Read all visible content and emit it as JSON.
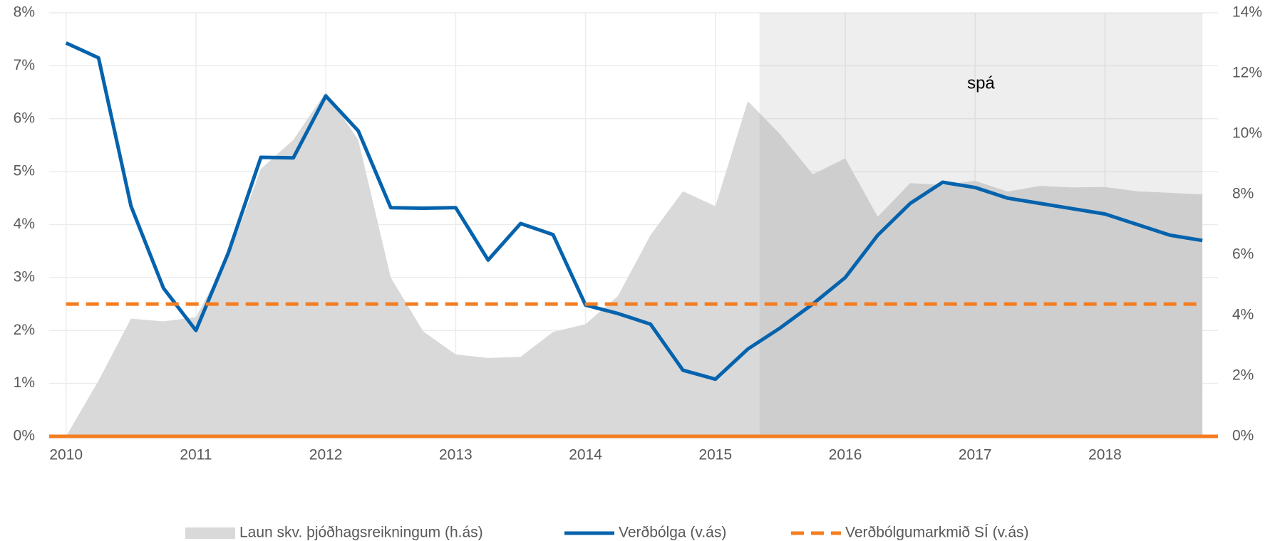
{
  "chart_data": {
    "type": "line",
    "x": [
      2010,
      2010.25,
      2010.5,
      2010.75,
      2011,
      2011.25,
      2011.5,
      2011.75,
      2012,
      2012.25,
      2012.5,
      2012.75,
      2013,
      2013.25,
      2013.5,
      2013.75,
      2014,
      2014.25,
      2014.5,
      2014.75,
      2015,
      2015.25,
      2015.5,
      2015.75,
      2016,
      2016.25,
      2016.5,
      2016.75,
      2017,
      2017.25,
      2017.5,
      2017.75,
      2018,
      2018.25,
      2018.5,
      2018.75
    ],
    "series": [
      {
        "name": "Laun skv. þjóðhagsreikningum (h.ás)",
        "kind": "area",
        "axis": "y2",
        "color": "#d9d9d9",
        "values": [
          0,
          1.84,
          3.89,
          3.8,
          3.94,
          5.95,
          8.84,
          9.8,
          11.38,
          9.8,
          5.25,
          3.47,
          2.71,
          2.59,
          2.63,
          3.45,
          3.71,
          4.64,
          6.65,
          8.1,
          7.61,
          11.08,
          9.98,
          8.66,
          9.19,
          7.26,
          8.37,
          8.31,
          8.45,
          8.09,
          8.28,
          8.23,
          8.24,
          8.1,
          8.05,
          8.0
        ]
      },
      {
        "name": "Verðbólga (v.ás)",
        "kind": "line",
        "color": "#0563ad",
        "values": [
          7.43,
          7.15,
          4.35,
          2.8,
          2.0,
          3.47,
          5.27,
          5.26,
          6.43,
          5.77,
          4.32,
          4.31,
          4.32,
          3.33,
          4.02,
          3.81,
          2.48,
          2.32,
          2.12,
          1.25,
          1.08,
          1.65,
          2.05,
          2.5,
          3.0,
          3.8,
          4.4,
          4.8,
          4.7,
          4.5,
          4.4,
          4.3,
          4.2,
          4.0,
          3.8,
          3.7
        ]
      },
      {
        "name": "Verðbólgumarkmið SÍ (v.ás)",
        "kind": "dashed",
        "color": "#f47d20",
        "values": [
          2.5,
          2.5,
          2.5,
          2.5,
          2.5,
          2.5,
          2.5,
          2.5,
          2.5,
          2.5,
          2.5,
          2.5,
          2.5,
          2.5,
          2.5,
          2.5,
          2.5,
          2.5,
          2.5,
          2.5,
          2.5,
          2.5,
          2.5,
          2.5,
          2.5,
          2.5,
          2.5,
          2.5,
          2.5,
          2.5,
          2.5,
          2.5,
          2.5,
          2.5,
          2.5,
          2.5
        ]
      }
    ],
    "xlim": [
      2009.87,
      2018.87
    ],
    "xticks": [
      2010,
      2011,
      2012,
      2013,
      2014,
      2015,
      2016,
      2017,
      2018
    ],
    "ylim": [
      0,
      8
    ],
    "yticks": [
      {
        "value": 0,
        "label": "0%"
      },
      {
        "value": 1,
        "label": "1%"
      },
      {
        "value": 2,
        "label": "2%"
      },
      {
        "value": 3,
        "label": "3%"
      },
      {
        "value": 4,
        "label": "4%"
      },
      {
        "value": 5,
        "label": "5%"
      },
      {
        "value": 6,
        "label": "6%"
      },
      {
        "value": 7,
        "label": "7%"
      },
      {
        "value": 8,
        "label": "8%"
      }
    ],
    "y2lim": [
      0,
      14
    ],
    "y2ticks": [
      {
        "value": 0,
        "label": "0%"
      },
      {
        "value": 2,
        "label": "2%"
      },
      {
        "value": 4,
        "label": "4%"
      },
      {
        "value": 6,
        "label": "6%"
      },
      {
        "value": 8,
        "label": "8%"
      },
      {
        "value": 10,
        "label": "10%"
      },
      {
        "value": 12,
        "label": "12%"
      },
      {
        "value": 14,
        "label": "14%"
      }
    ],
    "forecast": {
      "start": 2015.34,
      "end": 2018.75,
      "label": "spá"
    },
    "grid": true,
    "legend": "bottom"
  }
}
